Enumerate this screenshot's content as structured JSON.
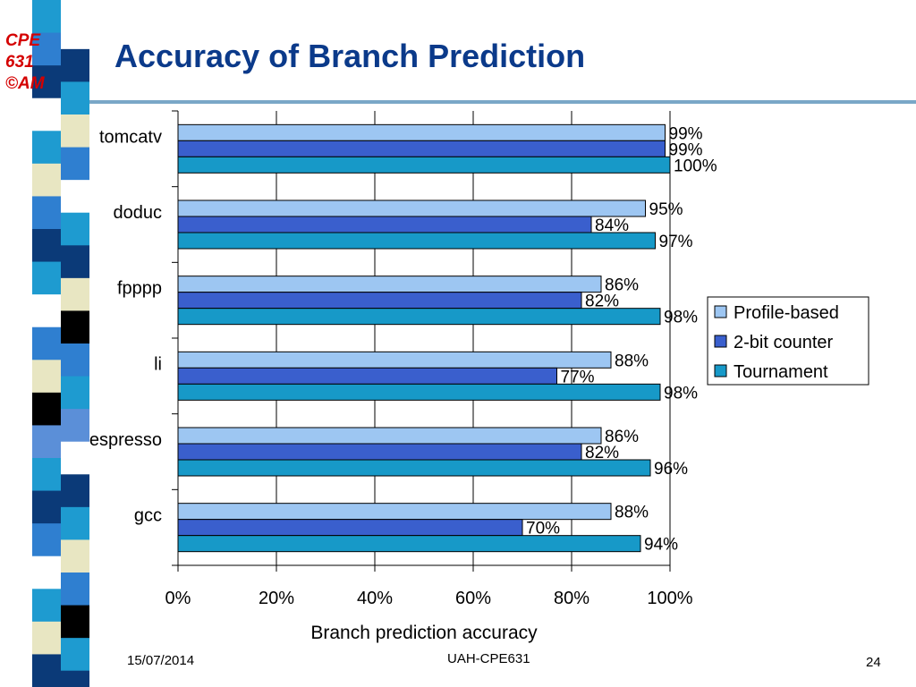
{
  "slide": {
    "corner_label": [
      "CPE",
      "631",
      "©AM"
    ],
    "title": "Accuracy of Branch Prediction",
    "footer_date": "15/07/2014",
    "footer_center": "UAH-CPE631",
    "page_number": "24"
  },
  "chart_data": {
    "type": "bar",
    "orientation": "horizontal",
    "categories": [
      "tomcatv",
      "doduc",
      "fpppp",
      "li",
      "espresso",
      "gcc"
    ],
    "series": [
      {
        "name": "Profile-based",
        "values": [
          99,
          95,
          86,
          88,
          86,
          88
        ],
        "labels": [
          "99%",
          "95%",
          "86%",
          "88%",
          "86%",
          "88%"
        ],
        "color": "#9dc6f2"
      },
      {
        "name": "2-bit counter",
        "values": [
          99,
          84,
          82,
          77,
          82,
          70
        ],
        "labels": [
          "99%",
          "84%",
          "82%",
          "77%",
          "82%",
          "70%"
        ],
        "color": "#3a5fcd"
      },
      {
        "name": "Tournament",
        "values": [
          100,
          97,
          98,
          98,
          96,
          94
        ],
        "labels": [
          "100%",
          "97%",
          "98%",
          "98%",
          "96%",
          "94%"
        ],
        "color": "#1799c8"
      }
    ],
    "xlim": [
      0,
      100
    ],
    "xticks": [
      0,
      20,
      40,
      60,
      80,
      100
    ],
    "xtick_labels": [
      "0%",
      "20%",
      "40%",
      "60%",
      "80%",
      "100%"
    ],
    "xlabel": "Branch prediction accuracy",
    "ylabel": "",
    "grid": "vertical",
    "legend_position": "right"
  }
}
